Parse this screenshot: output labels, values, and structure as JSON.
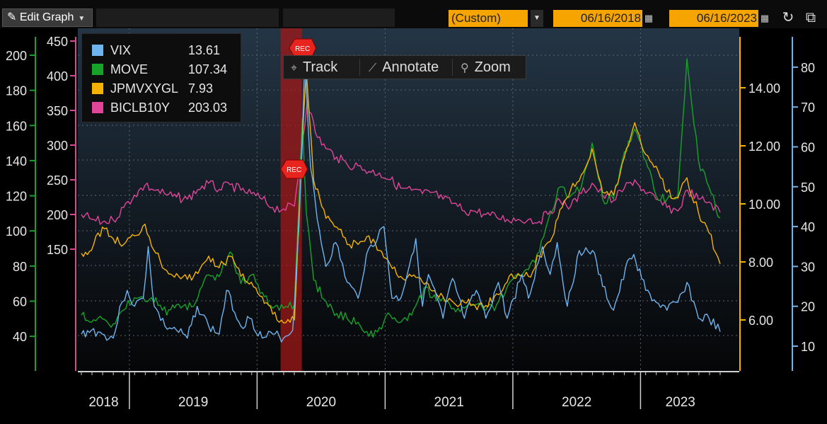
{
  "toolbar": {
    "edit_graph_label": "Edit Graph",
    "range_preset": "(Custom)",
    "start_date": "06/16/2018",
    "end_date": "06/16/2023"
  },
  "chart_toolbar": {
    "track_label": "Track",
    "annotate_label": "Annotate",
    "zoom_label": "Zoom"
  },
  "legend": [
    {
      "name": "VIX",
      "value": "13.61",
      "color": "#6fb3ef"
    },
    {
      "name": "MOVE",
      "value": "107.34",
      "color": "#17a32a"
    },
    {
      "name": "JPMVXYGL",
      "value": "7.93",
      "color": "#f5b301"
    },
    {
      "name": "BICLB10Y",
      "value": "203.03",
      "color": "#e0459a"
    }
  ],
  "recession_label": "REC",
  "chart_data": {
    "type": "line",
    "x_range": [
      "2018-06-16",
      "2023-06-16"
    ],
    "x_ticks": [
      "2018",
      "2019",
      "2020",
      "2021",
      "2022",
      "2023"
    ],
    "recession_shading": [
      "2020-02-20",
      "2020-04-30"
    ],
    "axes": {
      "move_outer": {
        "ticks": [
          "40",
          "60",
          "80",
          "100",
          "120",
          "140",
          "160",
          "180",
          "200"
        ],
        "color": "#17a32a"
      },
      "biclb10y": {
        "ticks": [
          "150",
          "200",
          "250",
          "300",
          "350",
          "400",
          "450"
        ],
        "color": "#e0459a"
      },
      "jpmvxygl": {
        "ticks": [
          "6.00",
          "8.00",
          "10.00",
          "12.00",
          "14.00"
        ],
        "color": "#f5b301"
      },
      "vix": {
        "ticks": [
          "10",
          "20",
          "30",
          "40",
          "50",
          "60",
          "70",
          "80"
        ],
        "color": "#6fb3ef"
      }
    },
    "series": [
      {
        "name": "VIX",
        "axis": "vix",
        "points": [
          [
            "2018-06-16",
            13
          ],
          [
            "2018-07-15",
            14
          ],
          [
            "2018-08-15",
            13
          ],
          [
            "2018-09-15",
            12
          ],
          [
            "2018-10-10",
            21
          ],
          [
            "2018-10-25",
            24
          ],
          [
            "2018-11-15",
            20
          ],
          [
            "2018-12-10",
            22
          ],
          [
            "2018-12-24",
            35
          ],
          [
            "2019-01-10",
            20
          ],
          [
            "2019-02-10",
            15
          ],
          [
            "2019-03-15",
            14
          ],
          [
            "2019-04-15",
            12
          ],
          [
            "2019-05-13",
            20
          ],
          [
            "2019-06-15",
            15
          ],
          [
            "2019-07-15",
            13
          ],
          [
            "2019-08-05",
            24
          ],
          [
            "2019-09-15",
            15
          ],
          [
            "2019-10-10",
            17
          ],
          [
            "2019-11-15",
            12
          ],
          [
            "2019-12-15",
            13
          ],
          [
            "2020-01-15",
            12
          ],
          [
            "2020-02-10",
            14
          ],
          [
            "2020-02-28",
            40
          ],
          [
            "2020-03-16",
            82
          ],
          [
            "2020-04-01",
            55
          ],
          [
            "2020-04-20",
            42
          ],
          [
            "2020-05-15",
            30
          ],
          [
            "2020-06-12",
            36
          ],
          [
            "2020-07-15",
            26
          ],
          [
            "2020-08-15",
            22
          ],
          [
            "2020-09-08",
            33
          ],
          [
            "2020-10-28",
            40
          ],
          [
            "2020-11-20",
            22
          ],
          [
            "2020-12-15",
            22
          ],
          [
            "2021-01-27",
            37
          ],
          [
            "2021-02-15",
            20
          ],
          [
            "2021-03-04",
            28
          ],
          [
            "2021-04-15",
            17
          ],
          [
            "2021-05-12",
            27
          ],
          [
            "2021-06-15",
            17
          ],
          [
            "2021-07-19",
            24
          ],
          [
            "2021-08-15",
            17
          ],
          [
            "2021-09-20",
            26
          ],
          [
            "2021-10-15",
            17
          ],
          [
            "2021-11-26",
            28
          ],
          [
            "2021-12-15",
            22
          ],
          [
            "2022-01-24",
            35
          ],
          [
            "2022-02-15",
            28
          ],
          [
            "2022-03-07",
            36
          ],
          [
            "2022-04-05",
            20
          ],
          [
            "2022-05-09",
            34
          ],
          [
            "2022-06-16",
            34
          ],
          [
            "2022-07-15",
            25
          ],
          [
            "2022-08-15",
            19
          ],
          [
            "2022-09-30",
            32
          ],
          [
            "2022-10-12",
            33
          ],
          [
            "2022-11-15",
            24
          ],
          [
            "2022-12-15",
            21
          ],
          [
            "2023-01-15",
            19
          ],
          [
            "2023-02-15",
            21
          ],
          [
            "2023-03-13",
            26
          ],
          [
            "2023-04-15",
            17
          ],
          [
            "2023-05-15",
            17
          ],
          [
            "2023-06-16",
            13.61
          ]
        ]
      },
      {
        "name": "MOVE",
        "axis": "move_outer",
        "points": [
          [
            "2018-06-16",
            52
          ],
          [
            "2018-07-15",
            48
          ],
          [
            "2018-08-15",
            50
          ],
          [
            "2018-09-15",
            47
          ],
          [
            "2018-10-15",
            55
          ],
          [
            "2018-11-15",
            62
          ],
          [
            "2018-12-15",
            60
          ],
          [
            "2019-01-15",
            62
          ],
          [
            "2019-02-15",
            52
          ],
          [
            "2019-03-15",
            58
          ],
          [
            "2019-04-15",
            55
          ],
          [
            "2019-05-15",
            62
          ],
          [
            "2019-06-15",
            75
          ],
          [
            "2019-07-15",
            74
          ],
          [
            "2019-08-15",
            88
          ],
          [
            "2019-09-15",
            70
          ],
          [
            "2019-10-15",
            75
          ],
          [
            "2019-11-15",
            65
          ],
          [
            "2019-12-15",
            56
          ],
          [
            "2020-01-15",
            56
          ],
          [
            "2020-02-15",
            58
          ],
          [
            "2020-03-09",
            164
          ],
          [
            "2020-03-20",
            110
          ],
          [
            "2020-04-10",
            72
          ],
          [
            "2020-05-15",
            60
          ],
          [
            "2020-06-15",
            53
          ],
          [
            "2020-07-15",
            50
          ],
          [
            "2020-08-15",
            48
          ],
          [
            "2020-09-15",
            40
          ],
          [
            "2020-10-15",
            45
          ],
          [
            "2020-11-15",
            52
          ],
          [
            "2020-12-15",
            48
          ],
          [
            "2021-01-15",
            52
          ],
          [
            "2021-02-25",
            68
          ],
          [
            "2021-03-15",
            62
          ],
          [
            "2021-04-15",
            62
          ],
          [
            "2021-05-15",
            56
          ],
          [
            "2021-06-15",
            56
          ],
          [
            "2021-07-15",
            58
          ],
          [
            "2021-08-15",
            55
          ],
          [
            "2021-09-15",
            58
          ],
          [
            "2021-10-15",
            68
          ],
          [
            "2021-11-15",
            75
          ],
          [
            "2021-12-15",
            78
          ],
          [
            "2022-01-15",
            88
          ],
          [
            "2022-02-15",
            110
          ],
          [
            "2022-03-15",
            125
          ],
          [
            "2022-04-15",
            120
          ],
          [
            "2022-05-15",
            125
          ],
          [
            "2022-06-15",
            150
          ],
          [
            "2022-07-15",
            118
          ],
          [
            "2022-08-15",
            118
          ],
          [
            "2022-09-15",
            145
          ],
          [
            "2022-10-15",
            158
          ],
          [
            "2022-11-15",
            140
          ],
          [
            "2022-12-15",
            120
          ],
          [
            "2023-01-15",
            118
          ],
          [
            "2023-02-15",
            120
          ],
          [
            "2023-03-13",
            198
          ],
          [
            "2023-04-15",
            140
          ],
          [
            "2023-05-15",
            125
          ],
          [
            "2023-06-16",
            107.34
          ]
        ]
      },
      {
        "name": "JPMVXYGL",
        "axis": "jpmvxygl",
        "points": [
          [
            "2018-06-16",
            8.3
          ],
          [
            "2018-07-15",
            8.4
          ],
          [
            "2018-08-15",
            9.2
          ],
          [
            "2018-09-15",
            8.8
          ],
          [
            "2018-10-15",
            8.6
          ],
          [
            "2018-11-15",
            8.9
          ],
          [
            "2018-12-15",
            9.3
          ],
          [
            "2019-01-15",
            8.3
          ],
          [
            "2019-02-15",
            7.7
          ],
          [
            "2019-03-15",
            7.6
          ],
          [
            "2019-04-15",
            7.4
          ],
          [
            "2019-05-15",
            7.6
          ],
          [
            "2019-06-15",
            8.2
          ],
          [
            "2019-07-15",
            7.8
          ],
          [
            "2019-08-15",
            8.2
          ],
          [
            "2019-09-15",
            7.5
          ],
          [
            "2019-10-15",
            7.3
          ],
          [
            "2019-11-15",
            6.8
          ],
          [
            "2019-12-15",
            6.2
          ],
          [
            "2020-01-15",
            5.9
          ],
          [
            "2020-02-15",
            6.0
          ],
          [
            "2020-03-10",
            12.5
          ],
          [
            "2020-03-20",
            14.6
          ],
          [
            "2020-04-10",
            10.8
          ],
          [
            "2020-05-15",
            9.5
          ],
          [
            "2020-06-15",
            9.2
          ],
          [
            "2020-07-15",
            8.6
          ],
          [
            "2020-08-15",
            8.6
          ],
          [
            "2020-09-15",
            8.9
          ],
          [
            "2020-10-15",
            8.4
          ],
          [
            "2020-11-15",
            7.9
          ],
          [
            "2020-12-15",
            7.5
          ],
          [
            "2021-01-15",
            7.5
          ],
          [
            "2021-02-15",
            7.3
          ],
          [
            "2021-03-15",
            7.0
          ],
          [
            "2021-04-15",
            6.8
          ],
          [
            "2021-05-15",
            6.6
          ],
          [
            "2021-06-15",
            6.6
          ],
          [
            "2021-07-15",
            6.5
          ],
          [
            "2021-08-15",
            6.5
          ],
          [
            "2021-09-15",
            6.9
          ],
          [
            "2021-10-15",
            7.3
          ],
          [
            "2021-11-15",
            7.6
          ],
          [
            "2021-12-15",
            7.5
          ],
          [
            "2022-01-15",
            8.2
          ],
          [
            "2022-02-15",
            8.7
          ],
          [
            "2022-03-15",
            9.8
          ],
          [
            "2022-04-15",
            10.5
          ],
          [
            "2022-05-15",
            11.0
          ],
          [
            "2022-06-15",
            11.9
          ],
          [
            "2022-07-15",
            10.4
          ],
          [
            "2022-08-15",
            10.3
          ],
          [
            "2022-09-15",
            11.6
          ],
          [
            "2022-10-15",
            12.8
          ],
          [
            "2022-11-15",
            11.7
          ],
          [
            "2022-12-15",
            11.3
          ],
          [
            "2023-01-15",
            10.4
          ],
          [
            "2023-02-15",
            10.2
          ],
          [
            "2023-03-13",
            10.9
          ],
          [
            "2023-04-15",
            9.7
          ],
          [
            "2023-05-15",
            9.0
          ],
          [
            "2023-06-16",
            7.93
          ]
        ]
      },
      {
        "name": "BICLB10Y",
        "axis": "biclb10y",
        "points": [
          [
            "2018-06-16",
            200
          ],
          [
            "2018-07-15",
            193
          ],
          [
            "2018-08-15",
            189
          ],
          [
            "2018-09-15",
            192
          ],
          [
            "2018-10-15",
            210
          ],
          [
            "2018-11-15",
            228
          ],
          [
            "2018-12-15",
            242
          ],
          [
            "2019-01-15",
            235
          ],
          [
            "2019-02-15",
            228
          ],
          [
            "2019-03-15",
            225
          ],
          [
            "2019-04-15",
            222
          ],
          [
            "2019-05-15",
            236
          ],
          [
            "2019-06-15",
            245
          ],
          [
            "2019-07-15",
            236
          ],
          [
            "2019-08-15",
            243
          ],
          [
            "2019-09-15",
            235
          ],
          [
            "2019-10-15",
            230
          ],
          [
            "2019-11-15",
            222
          ],
          [
            "2019-12-15",
            210
          ],
          [
            "2020-01-15",
            208
          ],
          [
            "2020-02-15",
            212
          ],
          [
            "2020-03-23",
            365
          ],
          [
            "2020-04-15",
            318
          ],
          [
            "2020-05-15",
            295
          ],
          [
            "2020-06-15",
            283
          ],
          [
            "2020-07-15",
            272
          ],
          [
            "2020-08-15",
            270
          ],
          [
            "2020-09-15",
            262
          ],
          [
            "2020-10-15",
            260
          ],
          [
            "2020-11-15",
            250
          ],
          [
            "2020-12-15",
            238
          ],
          [
            "2021-01-15",
            235
          ],
          [
            "2021-02-15",
            230
          ],
          [
            "2021-03-15",
            232
          ],
          [
            "2021-04-15",
            222
          ],
          [
            "2021-05-15",
            216
          ],
          [
            "2021-06-15",
            205
          ],
          [
            "2021-07-15",
            205
          ],
          [
            "2021-08-15",
            200
          ],
          [
            "2021-09-15",
            196
          ],
          [
            "2021-10-15",
            193
          ],
          [
            "2021-11-15",
            193
          ],
          [
            "2021-12-15",
            193
          ],
          [
            "2022-01-15",
            190
          ],
          [
            "2022-02-15",
            205
          ],
          [
            "2022-03-15",
            220
          ],
          [
            "2022-04-15",
            212
          ],
          [
            "2022-05-15",
            230
          ],
          [
            "2022-06-15",
            245
          ],
          [
            "2022-07-15",
            228
          ],
          [
            "2022-08-15",
            220
          ],
          [
            "2022-09-15",
            238
          ],
          [
            "2022-10-15",
            250
          ],
          [
            "2022-11-15",
            230
          ],
          [
            "2022-12-15",
            222
          ],
          [
            "2023-01-15",
            210
          ],
          [
            "2023-02-15",
            205
          ],
          [
            "2023-03-15",
            235
          ],
          [
            "2023-04-15",
            222
          ],
          [
            "2023-05-15",
            218
          ],
          [
            "2023-06-16",
            203.03
          ]
        ]
      }
    ]
  }
}
